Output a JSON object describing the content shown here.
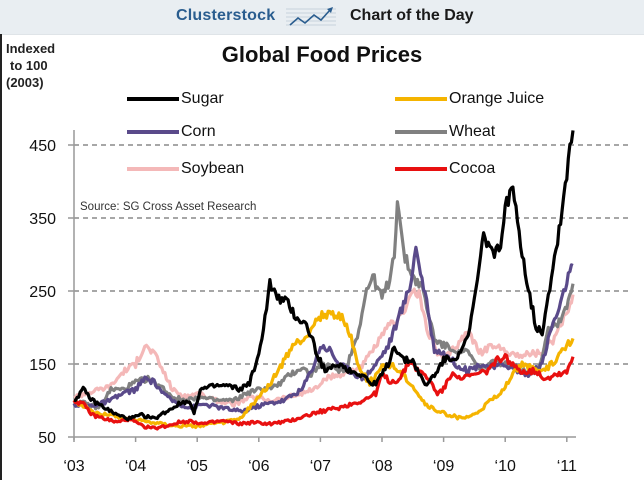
{
  "header": {
    "brand": "Clusterstock",
    "logo_icon": "rising-chart-icon",
    "tagline": "Chart of the Day"
  },
  "chart_data": {
    "type": "line",
    "title": "Global Food Prices",
    "ylabel": "Indexed to 100 (2003)",
    "ylabel_lines": [
      "Indexed",
      "to 100",
      "(2003)"
    ],
    "xlabel": "",
    "source": "Source: SG Cross Asset Research",
    "ylim": [
      50,
      470
    ],
    "xlim": [
      2003,
      2011.1
    ],
    "y_ticks": [
      50,
      150,
      250,
      350,
      450
    ],
    "y_tick_labels": [
      "50",
      "150",
      "250",
      "350",
      "450"
    ],
    "x_ticks": [
      2003,
      2004,
      2005,
      2006,
      2007,
      2008,
      2009,
      2010,
      2011
    ],
    "x_tick_labels": [
      "‘03",
      "‘04",
      "‘05",
      "‘06",
      "‘07",
      "‘08",
      "‘09",
      "‘10",
      "‘11"
    ],
    "grid": "horizontal dashed",
    "legend_position": "top",
    "series": [
      {
        "name": "Sugar",
        "color": "#000000",
        "points": [
          [
            2003.0,
            100
          ],
          [
            2003.15,
            115
          ],
          [
            2003.3,
            100
          ],
          [
            2003.5,
            90
          ],
          [
            2003.7,
            80
          ],
          [
            2003.9,
            75
          ],
          [
            2004.1,
            80
          ],
          [
            2004.3,
            75
          ],
          [
            2004.5,
            85
          ],
          [
            2004.7,
            95
          ],
          [
            2004.85,
            100
          ],
          [
            2004.95,
            85
          ],
          [
            2005.05,
            115
          ],
          [
            2005.3,
            120
          ],
          [
            2005.5,
            120
          ],
          [
            2005.7,
            115
          ],
          [
            2005.85,
            125
          ],
          [
            2006.0,
            160
          ],
          [
            2006.1,
            215
          ],
          [
            2006.18,
            260
          ],
          [
            2006.3,
            240
          ],
          [
            2006.45,
            235
          ],
          [
            2006.6,
            215
          ],
          [
            2006.75,
            205
          ],
          [
            2006.85,
            190
          ],
          [
            2006.95,
            160
          ],
          [
            2007.1,
            140
          ],
          [
            2007.3,
            150
          ],
          [
            2007.5,
            140
          ],
          [
            2007.7,
            135
          ],
          [
            2007.85,
            120
          ],
          [
            2008.0,
            135
          ],
          [
            2008.1,
            150
          ],
          [
            2008.2,
            175
          ],
          [
            2008.35,
            155
          ],
          [
            2008.5,
            155
          ],
          [
            2008.7,
            120
          ],
          [
            2008.85,
            135
          ],
          [
            2009.0,
            155
          ],
          [
            2009.2,
            160
          ],
          [
            2009.4,
            185
          ],
          [
            2009.55,
            265
          ],
          [
            2009.65,
            325
          ],
          [
            2009.8,
            305
          ],
          [
            2009.9,
            305
          ],
          [
            2010.0,
            360
          ],
          [
            2010.1,
            395
          ],
          [
            2010.2,
            345
          ],
          [
            2010.35,
            265
          ],
          [
            2010.5,
            200
          ],
          [
            2010.6,
            195
          ],
          [
            2010.75,
            270
          ],
          [
            2010.85,
            320
          ],
          [
            2010.95,
            380
          ],
          [
            2011.0,
            410
          ],
          [
            2011.05,
            450
          ],
          [
            2011.1,
            470
          ]
        ]
      },
      {
        "name": "Orange Juice",
        "color": "#f5b400",
        "points": [
          [
            2003.0,
            100
          ],
          [
            2003.3,
            85
          ],
          [
            2003.6,
            80
          ],
          [
            2003.9,
            75
          ],
          [
            2004.3,
            70
          ],
          [
            2004.7,
            65
          ],
          [
            2005.0,
            65
          ],
          [
            2005.4,
            70
          ],
          [
            2005.7,
            75
          ],
          [
            2005.95,
            100
          ],
          [
            2006.15,
            120
          ],
          [
            2006.35,
            145
          ],
          [
            2006.55,
            175
          ],
          [
            2006.75,
            185
          ],
          [
            2006.85,
            200
          ],
          [
            2007.0,
            215
          ],
          [
            2007.2,
            220
          ],
          [
            2007.35,
            215
          ],
          [
            2007.5,
            185
          ],
          [
            2007.65,
            140
          ],
          [
            2007.8,
            125
          ],
          [
            2008.0,
            145
          ],
          [
            2008.15,
            150
          ],
          [
            2008.35,
            135
          ],
          [
            2008.5,
            120
          ],
          [
            2008.7,
            95
          ],
          [
            2008.9,
            85
          ],
          [
            2009.1,
            80
          ],
          [
            2009.3,
            75
          ],
          [
            2009.5,
            80
          ],
          [
            2009.7,
            95
          ],
          [
            2009.85,
            105
          ],
          [
            2010.0,
            120
          ],
          [
            2010.15,
            140
          ],
          [
            2010.3,
            150
          ],
          [
            2010.5,
            140
          ],
          [
            2010.7,
            145
          ],
          [
            2010.85,
            160
          ],
          [
            2011.0,
            175
          ],
          [
            2011.1,
            185
          ]
        ]
      },
      {
        "name": "Corn",
        "color": "#5a4a8a",
        "points": [
          [
            2003.0,
            95
          ],
          [
            2003.2,
            92
          ],
          [
            2003.4,
            95
          ],
          [
            2003.6,
            100
          ],
          [
            2003.8,
            110
          ],
          [
            2004.0,
            115
          ],
          [
            2004.15,
            130
          ],
          [
            2004.3,
            125
          ],
          [
            2004.5,
            105
          ],
          [
            2004.7,
            95
          ],
          [
            2004.9,
            90
          ],
          [
            2005.1,
            95
          ],
          [
            2005.4,
            90
          ],
          [
            2005.7,
            85
          ],
          [
            2005.9,
            90
          ],
          [
            2006.1,
            95
          ],
          [
            2006.4,
            100
          ],
          [
            2006.7,
            115
          ],
          [
            2006.9,
            150
          ],
          [
            2007.0,
            175
          ],
          [
            2007.15,
            170
          ],
          [
            2007.3,
            150
          ],
          [
            2007.5,
            140
          ],
          [
            2007.7,
            130
          ],
          [
            2007.9,
            150
          ],
          [
            2008.1,
            175
          ],
          [
            2008.3,
            220
          ],
          [
            2008.45,
            255
          ],
          [
            2008.55,
            310
          ],
          [
            2008.7,
            245
          ],
          [
            2008.85,
            170
          ],
          [
            2009.0,
            165
          ],
          [
            2009.2,
            150
          ],
          [
            2009.4,
            140
          ],
          [
            2009.6,
            150
          ],
          [
            2009.8,
            145
          ],
          [
            2010.0,
            150
          ],
          [
            2010.2,
            140
          ],
          [
            2010.4,
            135
          ],
          [
            2010.6,
            150
          ],
          [
            2010.75,
            200
          ],
          [
            2010.9,
            230
          ],
          [
            2011.0,
            265
          ],
          [
            2011.1,
            285
          ]
        ]
      },
      {
        "name": "Wheat",
        "color": "#808080",
        "points": [
          [
            2003.0,
            100
          ],
          [
            2003.2,
            95
          ],
          [
            2003.4,
            90
          ],
          [
            2003.6,
            115
          ],
          [
            2003.8,
            115
          ],
          [
            2004.0,
            125
          ],
          [
            2004.2,
            130
          ],
          [
            2004.4,
            120
          ],
          [
            2004.6,
            105
          ],
          [
            2004.8,
            100
          ],
          [
            2005.0,
            105
          ],
          [
            2005.3,
            100
          ],
          [
            2005.6,
            100
          ],
          [
            2005.8,
            110
          ],
          [
            2006.0,
            115
          ],
          [
            2006.3,
            120
          ],
          [
            2006.5,
            135
          ],
          [
            2006.7,
            145
          ],
          [
            2006.85,
            135
          ],
          [
            2007.0,
            150
          ],
          [
            2007.2,
            145
          ],
          [
            2007.4,
            140
          ],
          [
            2007.6,
            190
          ],
          [
            2007.75,
            250
          ],
          [
            2007.85,
            270
          ],
          [
            2008.0,
            240
          ],
          [
            2008.1,
            260
          ],
          [
            2008.2,
            300
          ],
          [
            2008.25,
            380
          ],
          [
            2008.35,
            300
          ],
          [
            2008.5,
            270
          ],
          [
            2008.65,
            255
          ],
          [
            2008.75,
            220
          ],
          [
            2008.85,
            185
          ],
          [
            2009.0,
            175
          ],
          [
            2009.2,
            170
          ],
          [
            2009.4,
            165
          ],
          [
            2009.6,
            140
          ],
          [
            2009.8,
            155
          ],
          [
            2010.0,
            150
          ],
          [
            2010.2,
            145
          ],
          [
            2010.4,
            140
          ],
          [
            2010.55,
            145
          ],
          [
            2010.7,
            200
          ],
          [
            2010.85,
            205
          ],
          [
            2011.0,
            230
          ],
          [
            2011.1,
            260
          ]
        ]
      },
      {
        "name": "Soybean",
        "color": "#f4b8b8",
        "points": [
          [
            2003.0,
            105
          ],
          [
            2003.2,
            110
          ],
          [
            2003.4,
            115
          ],
          [
            2003.6,
            120
          ],
          [
            2003.8,
            140
          ],
          [
            2004.0,
            150
          ],
          [
            2004.15,
            175
          ],
          [
            2004.3,
            165
          ],
          [
            2004.45,
            140
          ],
          [
            2004.6,
            115
          ],
          [
            2004.8,
            105
          ],
          [
            2005.0,
            110
          ],
          [
            2005.3,
            100
          ],
          [
            2005.6,
            95
          ],
          [
            2005.9,
            105
          ],
          [
            2006.2,
            100
          ],
          [
            2006.5,
            105
          ],
          [
            2006.7,
            110
          ],
          [
            2006.9,
            115
          ],
          [
            2007.1,
            130
          ],
          [
            2007.3,
            135
          ],
          [
            2007.5,
            140
          ],
          [
            2007.7,
            150
          ],
          [
            2007.9,
            175
          ],
          [
            2008.1,
            200
          ],
          [
            2008.3,
            215
          ],
          [
            2008.5,
            250
          ],
          [
            2008.6,
            245
          ],
          [
            2008.75,
            195
          ],
          [
            2008.9,
            165
          ],
          [
            2009.0,
            155
          ],
          [
            2009.2,
            175
          ],
          [
            2009.4,
            195
          ],
          [
            2009.6,
            165
          ],
          [
            2009.8,
            175
          ],
          [
            2010.0,
            170
          ],
          [
            2010.2,
            160
          ],
          [
            2010.4,
            165
          ],
          [
            2010.6,
            165
          ],
          [
            2010.8,
            185
          ],
          [
            2010.95,
            210
          ],
          [
            2011.1,
            245
          ]
        ]
      },
      {
        "name": "Cocoa",
        "color": "#e81010",
        "points": [
          [
            2003.0,
            100
          ],
          [
            2003.15,
            95
          ],
          [
            2003.3,
            80
          ],
          [
            2003.5,
            75
          ],
          [
            2003.7,
            70
          ],
          [
            2003.9,
            75
          ],
          [
            2004.1,
            65
          ],
          [
            2004.3,
            62
          ],
          [
            2004.5,
            65
          ],
          [
            2004.7,
            70
          ],
          [
            2004.9,
            72
          ],
          [
            2005.1,
            68
          ],
          [
            2005.4,
            72
          ],
          [
            2005.7,
            68
          ],
          [
            2005.9,
            70
          ],
          [
            2006.2,
            68
          ],
          [
            2006.5,
            72
          ],
          [
            2006.8,
            80
          ],
          [
            2007.0,
            85
          ],
          [
            2007.3,
            90
          ],
          [
            2007.5,
            95
          ],
          [
            2007.7,
            100
          ],
          [
            2007.9,
            110
          ],
          [
            2008.0,
            135
          ],
          [
            2008.15,
            125
          ],
          [
            2008.3,
            130
          ],
          [
            2008.45,
            155
          ],
          [
            2008.6,
            140
          ],
          [
            2008.75,
            130
          ],
          [
            2008.9,
            110
          ],
          [
            2009.0,
            115
          ],
          [
            2009.15,
            140
          ],
          [
            2009.3,
            130
          ],
          [
            2009.5,
            135
          ],
          [
            2009.7,
            140
          ],
          [
            2009.85,
            155
          ],
          [
            2010.0,
            160
          ],
          [
            2010.15,
            145
          ],
          [
            2010.3,
            140
          ],
          [
            2010.5,
            140
          ],
          [
            2010.65,
            130
          ],
          [
            2010.8,
            135
          ],
          [
            2011.0,
            140
          ],
          [
            2011.1,
            160
          ]
        ]
      }
    ]
  }
}
